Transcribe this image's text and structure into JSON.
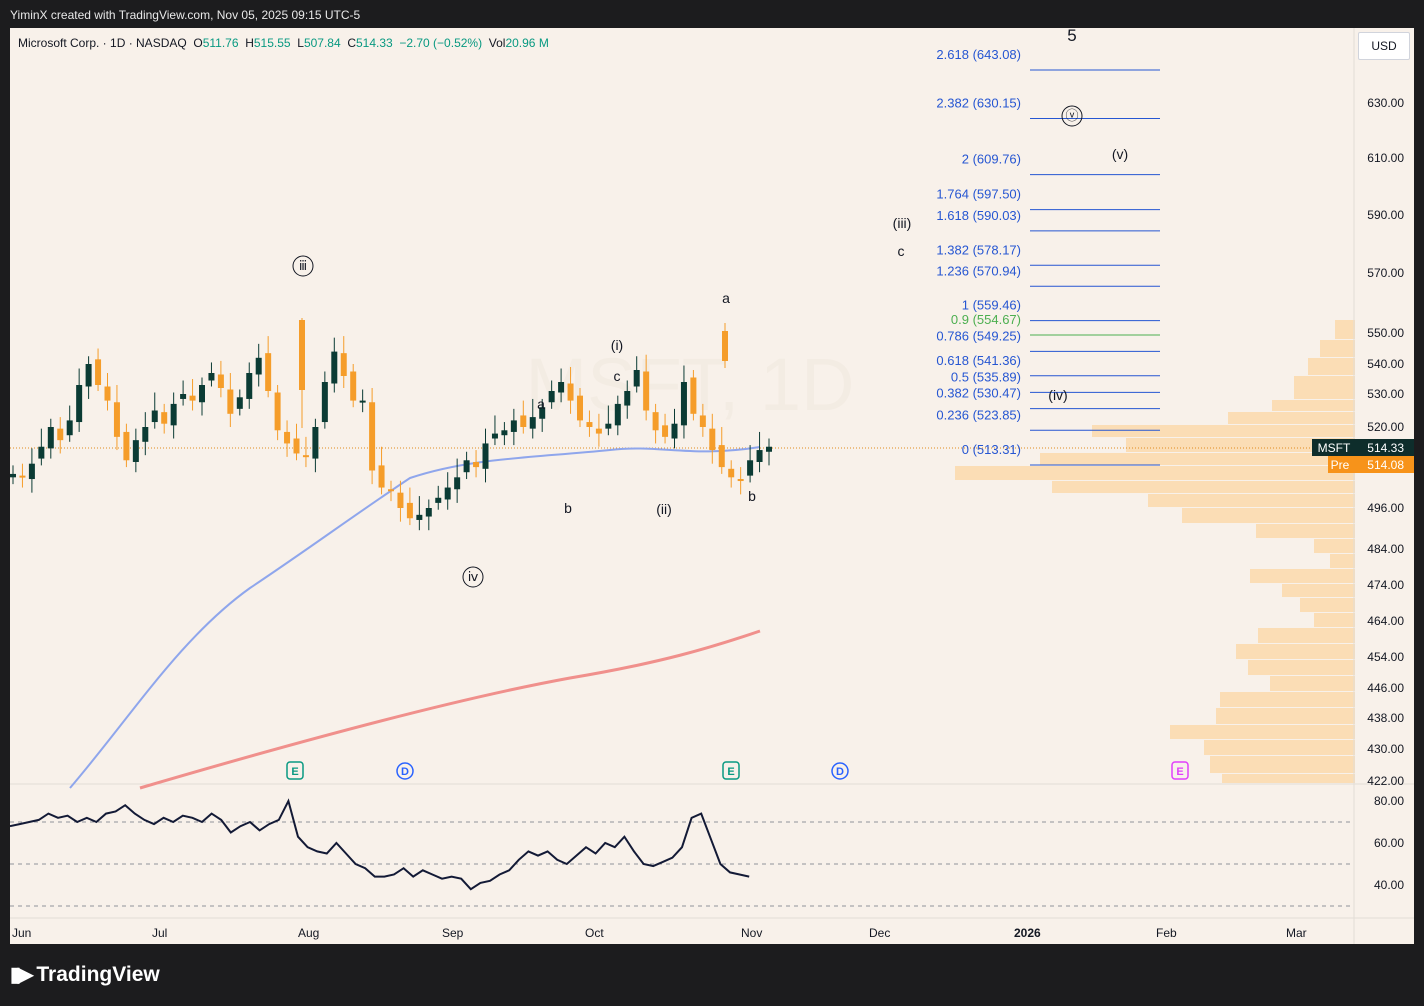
{
  "header": {
    "caption": "YiminX created with TradingView.com, Nov 05, 2025 09:15 UTC-5"
  },
  "legend": {
    "symbol": "Microsoft Corp. · 1D · NASDAQ",
    "o_label": "O",
    "o": "511.76",
    "h_label": "H",
    "h": "515.55",
    "l_label": "L",
    "l": "507.84",
    "c_label": "C",
    "c": "514.33",
    "change": "−2.70 (−0.52%)",
    "vol_label": "Vol",
    "vol": "20.96 M"
  },
  "currency_button": "USD",
  "watermark": "MSFT, 1D",
  "footer": {
    "brand": "TradingView"
  },
  "colors": {
    "up": "#0b3b34",
    "down": "#f59d2a",
    "ma50": "#8fa6ec",
    "ma200": "#f0908c",
    "fib": "#2656d2",
    "rsi": "#131a36"
  },
  "chart_data": [
    {
      "type": "candlestick",
      "symbol": "MSFT",
      "timeframe": "1D",
      "y_axis_ticks": [
        "630.00",
        "610.00",
        "590.00",
        "570.00",
        "550.00",
        "540.00",
        "530.00",
        "520.00",
        "496.00",
        "484.00",
        "474.00",
        "464.00",
        "454.00",
        "446.00",
        "438.00",
        "430.00",
        "422.00"
      ],
      "x_axis_ticks": [
        "Jun",
        "Jul",
        "Aug",
        "Sep",
        "Oct",
        "Nov",
        "Dec",
        "2026",
        "Feb",
        "Mar"
      ],
      "last_price": {
        "label": "MSFT",
        "value": "514.33"
      },
      "premarket": {
        "label": "Pre",
        "value": "514.08"
      },
      "close_path": [
        506,
        505,
        509,
        514,
        520,
        516,
        522,
        533,
        540,
        533,
        528,
        517,
        510,
        516,
        520,
        525,
        521,
        527,
        530,
        528,
        533,
        537,
        532,
        524,
        529,
        537,
        542,
        531,
        519,
        515,
        512,
        511,
        520,
        534,
        544,
        536,
        528,
        528,
        507,
        502,
        501,
        496,
        493,
        494,
        496,
        499,
        502,
        505,
        510,
        508,
        515,
        518,
        519,
        522,
        520,
        523,
        526,
        531,
        534,
        528,
        522,
        520,
        518,
        521,
        527,
        531,
        538,
        525,
        519,
        517,
        521,
        534,
        524,
        520,
        513,
        508,
        505,
        504,
        510,
        513,
        514
      ],
      "ohlc_segments": [
        {
          "date": "Jun",
          "approx_close": 470
        },
        {
          "date": "Jul",
          "approx_close": 500
        },
        {
          "date": "Jul 31",
          "approx_high": 555
        },
        {
          "date": "Aug",
          "approx_close": 522
        },
        {
          "date": "Sep 02",
          "approx_low": 497
        },
        {
          "date": "Oct",
          "approx_close": 517
        },
        {
          "date": "Oct 29",
          "approx_high": 553
        },
        {
          "date": "Nov 04",
          "approx_close": 514.33
        }
      ],
      "fib_levels": [
        {
          "ratio": "2.618",
          "price": "643.08"
        },
        {
          "ratio": "2.382",
          "price": "630.15"
        },
        {
          "ratio": "2",
          "price": "609.76"
        },
        {
          "ratio": "1.764",
          "price": "597.50"
        },
        {
          "ratio": "1.618",
          "price": "590.03"
        },
        {
          "ratio": "1.382",
          "price": "578.17"
        },
        {
          "ratio": "1.236",
          "price": "570.94"
        },
        {
          "ratio": "1",
          "price": "559.46"
        },
        {
          "ratio": "0.9",
          "price": "554.67"
        },
        {
          "ratio": "0.786",
          "price": "549.25"
        },
        {
          "ratio": "0.618",
          "price": "541.36"
        },
        {
          "ratio": "0.5",
          "price": "535.89"
        },
        {
          "ratio": "0.382",
          "price": "530.47"
        },
        {
          "ratio": "0.236",
          "price": "523.85"
        },
        {
          "ratio": "0",
          "price": "513.31"
        }
      ],
      "wave_labels": [
        "5",
        "ⓥ",
        "(v)",
        "(iii)",
        "c",
        "a",
        "(iv)",
        "ⅲ",
        "(i)",
        "c",
        "a",
        "b",
        "(ii)",
        "b",
        "ⅳ"
      ],
      "event_markers": [
        "E",
        "D",
        "E",
        "D",
        "E"
      ]
    },
    {
      "type": "line",
      "name": "RSI",
      "y_axis_ticks": [
        "80.00",
        "60.00",
        "40.00"
      ],
      "levels": [
        70,
        50,
        30
      ],
      "values": [
        68,
        69,
        70,
        71,
        74,
        72,
        73,
        70,
        72,
        70,
        74,
        75,
        78,
        74,
        71,
        69,
        72,
        70,
        73,
        72,
        70,
        74,
        71,
        65,
        68,
        70,
        66,
        69,
        71,
        80,
        63,
        58,
        56,
        55,
        60,
        55,
        50,
        48,
        44,
        44,
        45,
        48,
        44,
        47,
        45,
        43,
        44,
        43,
        38,
        41,
        42,
        45,
        47,
        52,
        56,
        54,
        56,
        52,
        50,
        54,
        58,
        55,
        60,
        58,
        63,
        56,
        50,
        49,
        51,
        53,
        58,
        72,
        74,
        62,
        50,
        46,
        45,
        44
      ]
    }
  ]
}
